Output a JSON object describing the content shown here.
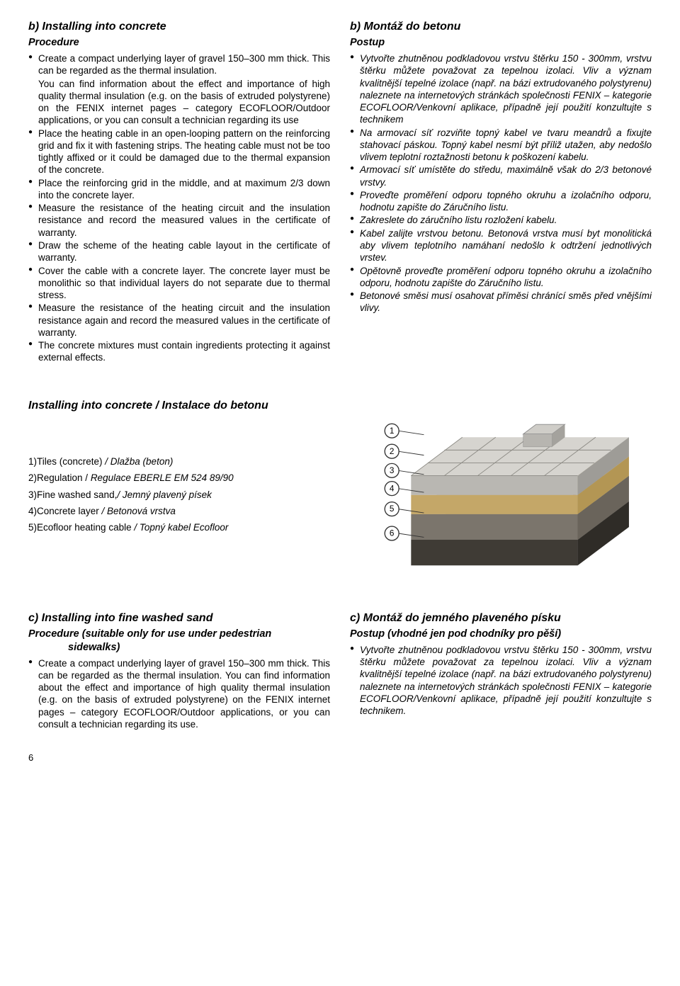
{
  "left": {
    "hb": "b)   Installing into concrete",
    "hproc": "Procedure",
    "p0": "Create a compact underlying layer of gravel 150–300 mm thick. This can be regarded as the thermal insulation.",
    "p0b": "You can find information about the effect and importance of high quality thermal insulation (e.g. on the basis of extruded polystyrene) on the FENIX internet pages – category ECOFLOOR/Outdoor applications, or you can consult a technician regarding its use",
    "b1": "Place the heating cable in an open-looping pattern on the reinforcing grid and fix it with fastening strips. The heating cable must not be too tightly affixed or it could be   damaged due to the thermal expansion of the concrete.",
    "b2": "Place the reinforcing grid in the middle, and at maximum 2/3 down into the concrete layer.",
    "b3": "Measure the resistance of the heating circuit and the insulation resistance and record the measured values in the certificate of warranty.",
    "b4": "Draw the scheme of the heating cable layout in the  certificate of warranty.",
    "b5": "Cover the cable with a concrete layer. The concrete layer must be monolithic so that individual layers do not separate due to thermal stress.",
    "b6": "Measure the resistance of the heating circuit and the insulation resistance again and record the measured values in the certificate of warranty.",
    "b7": "The concrete mixtures must contain ingredients protecting it against external effects."
  },
  "right": {
    "hb": "b)   Montáž do betonu",
    "hproc": "Postup",
    "b0": "Vytvořte zhutněnou podkladovou vrstvu štěrku 150 - 300mm, vrstvu štěrku můžete považovat za tepelnou izolaci. Vliv a význam kvalitnější tepelné izolace (např. na bázi extrudovaného polystyrenu) naleznete na internetových stránkách společnosti FENIX – kategorie ECOFLOOR/Venkovní aplikace, případně její použití konzultujte s technikem",
    "b1": "Na armovací síť rozviňte topný kabel ve tvaru meandrů a fixujte stahovací páskou. Topný kabel nesmí být příliž utažen, aby nedošlo vlivem teplotní roztažnosti betonu k poškození kabelu.",
    "b2": "Armovací síť umístěte do středu, maximálně však do 2/3 betonové vrstvy.",
    "b3": "Proveďte proměření odporu topného okruhu a izolačního odporu, hodnotu zapište do Záručního listu.",
    "b4": "Zakreslete do záručního listu rozložení kabelu.",
    "b5": "Kabel zalijte vrstvou betonu. Betonová vrstva musí byt monolitická aby vlivem teplotního namáhaní nedošlo k odtržení jednotlivých vrstev.",
    "b6": "Opětovně proveďte proměření odporu topného okruhu a izolačního odporu, hodnotu zapište do Záručního listu.",
    "b7": "Betonové směsi musí osahovat příměsi chránící směs před vnějšími vlivy."
  },
  "mid": {
    "title": "Installing into concrete / Instalace do betonu",
    "l1a": "1)Tiles (concrete) ",
    "l1b": "/ Dlažba (beton)",
    "l2a": "2)Regulation / ",
    "l2b": "Regulace EBERLE EM 524 89/90",
    "l3a": "3)Fine washed sand,",
    "l3b": "/ Jemný plavený písek",
    "l4a": "4)Concrete layer ",
    "l4b": "/ Betonová vrstva",
    "l5a": "5)Ecofloor heating cable ",
    "l5b": "/ Topný kabel Ecofloor"
  },
  "bottomLeft": {
    "hc": "c)   Installing into fine washed sand",
    "hproc": "Procedure (suitable only for use under pedestrian",
    "hproc2": "sidewalks)",
    "b0": "Create a compact underlying layer of gravel 150–300 mm thick. This can be regarded as the thermal insulation. You can find information about the effect and importance of high quality thermal insulation (e.g. on the basis of extruded polystyrene) on the FENIX internet pages – category ECOFLOOR/Outdoor applications, or you can consult a technician regarding its use."
  },
  "bottomRight": {
    "hc": "c)   Montáž do jemného plaveného písku",
    "hproc": "Postup (vhodné jen pod chodníky pro pěší)",
    "b0": "Vytvořte zhutněnou podkladovou vrstvu štěrku 150 - 300mm, vrstvu štěrku můžete považovat za tepelnou izolaci.  Vliv a význam kvalitnější tepelné izolace (např. na bázi extrudovaného polystyrenu) naleznete na internetových stránkách společnosti FENIX – kategorie ECOFLOOR/Venkovní aplikace, případně její použití konzultujte s technikem."
  },
  "pagenum": "6",
  "diagram": {
    "labels": [
      "1",
      "2",
      "3",
      "4",
      "5",
      "6"
    ],
    "colors": {
      "tile": "#b9b7b2",
      "tileTop": "#d6d4cf",
      "sand": "#d9c08c",
      "concrete": "#a8a39b",
      "concreteDark": "#7b756c",
      "gravel": "#54504a",
      "cable": "#8a2a1f",
      "circleFill": "#ffffff",
      "circleStroke": "#333333"
    }
  }
}
